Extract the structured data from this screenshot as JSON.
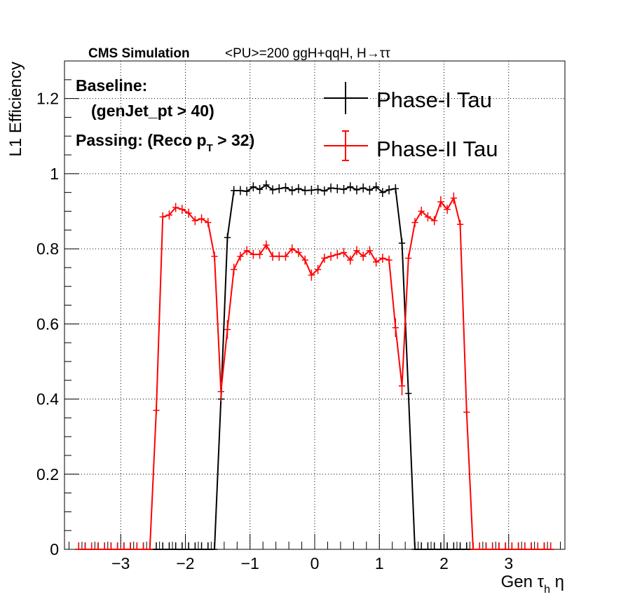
{
  "chart_data": {
    "type": "line",
    "header": {
      "bold": "CMS Simulation",
      "regular": "<PU>=200  ggH+qqH, H→ττ"
    },
    "annotations": [
      "Baseline:",
      "(genJet_pt > 40)",
      "Passing: (Reco p",
      "T",
      " > 32)"
    ],
    "xlabel": {
      "main": "Gen τ",
      "sub": "h",
      "tail": " η"
    },
    "ylabel": "L1 Efficiency",
    "xlim": [
      -3.87,
      3.87
    ],
    "ylim": [
      0,
      1.3
    ],
    "x_ticks": [
      -3,
      -2,
      -1,
      0,
      1,
      2,
      3
    ],
    "x_tick_labels": [
      "−3",
      "−2",
      "−1",
      "0",
      "1",
      "2",
      "3"
    ],
    "y_ticks": [
      0,
      0.2,
      0.4,
      0.6,
      0.8,
      1,
      1.2
    ],
    "y_tick_labels": [
      "0",
      "0.2",
      "0.4",
      "0.6",
      "0.8",
      "1",
      "1.2"
    ],
    "grid": true,
    "legend_position": "top-right",
    "series": [
      {
        "name": "Phase-I Tau",
        "color": "#000000",
        "x": [
          -3.65,
          -3.55,
          -3.45,
          -3.35,
          -3.25,
          -3.15,
          -3.05,
          -2.95,
          -2.85,
          -2.75,
          -2.65,
          -2.55,
          -2.45,
          -2.35,
          -2.25,
          -2.15,
          -2.05,
          -1.95,
          -1.85,
          -1.75,
          -1.65,
          -1.55,
          -1.45,
          -1.35,
          -1.25,
          -1.15,
          -1.05,
          -0.95,
          -0.85,
          -0.75,
          -0.65,
          -0.55,
          -0.45,
          -0.35,
          -0.25,
          -0.15,
          -0.05,
          0.05,
          0.15,
          0.25,
          0.35,
          0.45,
          0.55,
          0.65,
          0.75,
          0.85,
          0.95,
          1.05,
          1.15,
          1.25,
          1.35,
          1.45,
          1.55,
          1.65,
          1.75,
          1.85,
          1.95,
          2.05,
          2.15,
          2.25,
          2.35,
          2.45,
          2.55,
          2.65,
          2.75,
          2.85,
          2.95,
          3.05,
          3.15,
          3.25,
          3.35,
          3.45,
          3.55,
          3.65
        ],
        "y": [
          0,
          0,
          0,
          0,
          0,
          0,
          0,
          0,
          0,
          0,
          0,
          0,
          0,
          0,
          0,
          0,
          0,
          0,
          0,
          0,
          0,
          0,
          0.4,
          0.83,
          0.955,
          0.955,
          0.953,
          0.965,
          0.958,
          0.97,
          0.957,
          0.96,
          0.963,
          0.955,
          0.96,
          0.955,
          0.956,
          0.958,
          0.954,
          0.962,
          0.96,
          0.958,
          0.965,
          0.957,
          0.962,
          0.956,
          0.965,
          0.95,
          0.957,
          0.96,
          0.815,
          0.415,
          0,
          0,
          0,
          0,
          0,
          0,
          0,
          0,
          0,
          0,
          0,
          0,
          0,
          0,
          0,
          0,
          0,
          0,
          0,
          0,
          0,
          0
        ]
      },
      {
        "name": "Phase-II Tau",
        "color": "#ff0000",
        "x": [
          -3.65,
          -3.55,
          -3.45,
          -3.35,
          -3.25,
          -3.15,
          -3.05,
          -2.95,
          -2.85,
          -2.75,
          -2.65,
          -2.55,
          -2.45,
          -2.35,
          -2.25,
          -2.15,
          -2.05,
          -1.95,
          -1.85,
          -1.75,
          -1.65,
          -1.55,
          -1.45,
          -1.35,
          -1.25,
          -1.15,
          -1.05,
          -0.95,
          -0.85,
          -0.75,
          -0.65,
          -0.55,
          -0.45,
          -0.35,
          -0.25,
          -0.15,
          -0.05,
          0.05,
          0.15,
          0.25,
          0.35,
          0.45,
          0.55,
          0.65,
          0.75,
          0.85,
          0.95,
          1.05,
          1.15,
          1.25,
          1.35,
          1.45,
          1.55,
          1.65,
          1.75,
          1.85,
          1.95,
          2.05,
          2.15,
          2.25,
          2.35,
          2.45,
          2.55,
          2.65,
          2.75,
          2.85,
          2.95,
          3.05,
          3.15,
          3.25,
          3.35,
          3.45,
          3.55,
          3.65
        ],
        "y": [
          0,
          0,
          0,
          0,
          0,
          0,
          0,
          0,
          0,
          0,
          0,
          0,
          0.37,
          0.885,
          0.89,
          0.91,
          0.905,
          0.895,
          0.875,
          0.88,
          0.87,
          0.78,
          0.42,
          0.585,
          0.745,
          0.78,
          0.795,
          0.785,
          0.785,
          0.81,
          0.78,
          0.78,
          0.78,
          0.8,
          0.79,
          0.77,
          0.73,
          0.745,
          0.775,
          0.78,
          0.785,
          0.79,
          0.77,
          0.795,
          0.78,
          0.795,
          0.765,
          0.775,
          0.77,
          0.59,
          0.435,
          0.775,
          0.87,
          0.9,
          0.885,
          0.875,
          0.925,
          0.905,
          0.935,
          0.865,
          0.365,
          0,
          0,
          0,
          0,
          0,
          0,
          0,
          0,
          0,
          0,
          0,
          0,
          0
        ],
        "y_err": [
          0,
          0,
          0,
          0,
          0,
          0,
          0,
          0,
          0,
          0,
          0,
          0,
          0.012,
          0.012,
          0.012,
          0.012,
          0.012,
          0.012,
          0.012,
          0.012,
          0.012,
          0.012,
          0.025,
          0.025,
          0.015,
          0.012,
          0.012,
          0.012,
          0.012,
          0.012,
          0.012,
          0.012,
          0.012,
          0.012,
          0.012,
          0.012,
          0.015,
          0.012,
          0.012,
          0.012,
          0.012,
          0.012,
          0.012,
          0.012,
          0.012,
          0.012,
          0.012,
          0.012,
          0.012,
          0.025,
          0.025,
          0.012,
          0.012,
          0.012,
          0.012,
          0.012,
          0.015,
          0.012,
          0.015,
          0.012,
          0.012,
          0,
          0,
          0,
          0,
          0,
          0,
          0,
          0,
          0,
          0,
          0,
          0,
          0
        ]
      }
    ]
  }
}
